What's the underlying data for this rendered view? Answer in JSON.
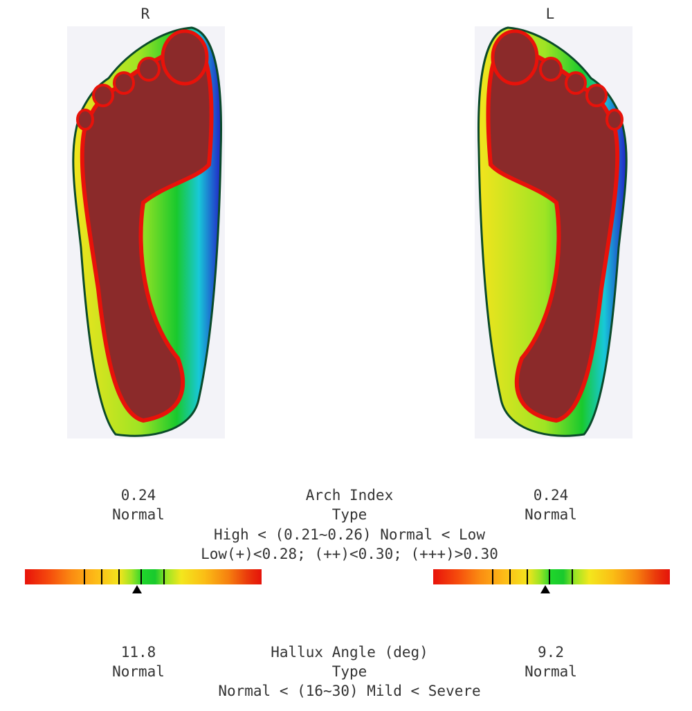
{
  "feet": {
    "right": {
      "side_label": "R",
      "arch_index": "0.24",
      "arch_type": "Normal",
      "hallux_angle": "11.8",
      "hallux_type": "Normal"
    },
    "left": {
      "side_label": "L",
      "arch_index": "0.24",
      "arch_type": "Normal",
      "hallux_angle": "9.2",
      "hallux_type": "Normal"
    }
  },
  "arch": {
    "title": "Arch Index",
    "type_label": "Type",
    "range_line": "High < (0.21~0.26) Normal < Low",
    "grade_line": "Low(+)<0.28; (++)<0.30; (+++)>0.30",
    "gauge_fraction_right": 0.475,
    "gauge_fraction_left": 0.475
  },
  "hallux": {
    "title": "Hallux Angle (deg)",
    "type_label": "Type",
    "range_line": "Normal < (16~30) Mild < Severe"
  },
  "colors": {
    "heat_high": "#8b2a2a",
    "heat_mid": "#f3e41d",
    "heat_low": "#1e1ecf",
    "gauge_center": "#19c92d"
  }
}
